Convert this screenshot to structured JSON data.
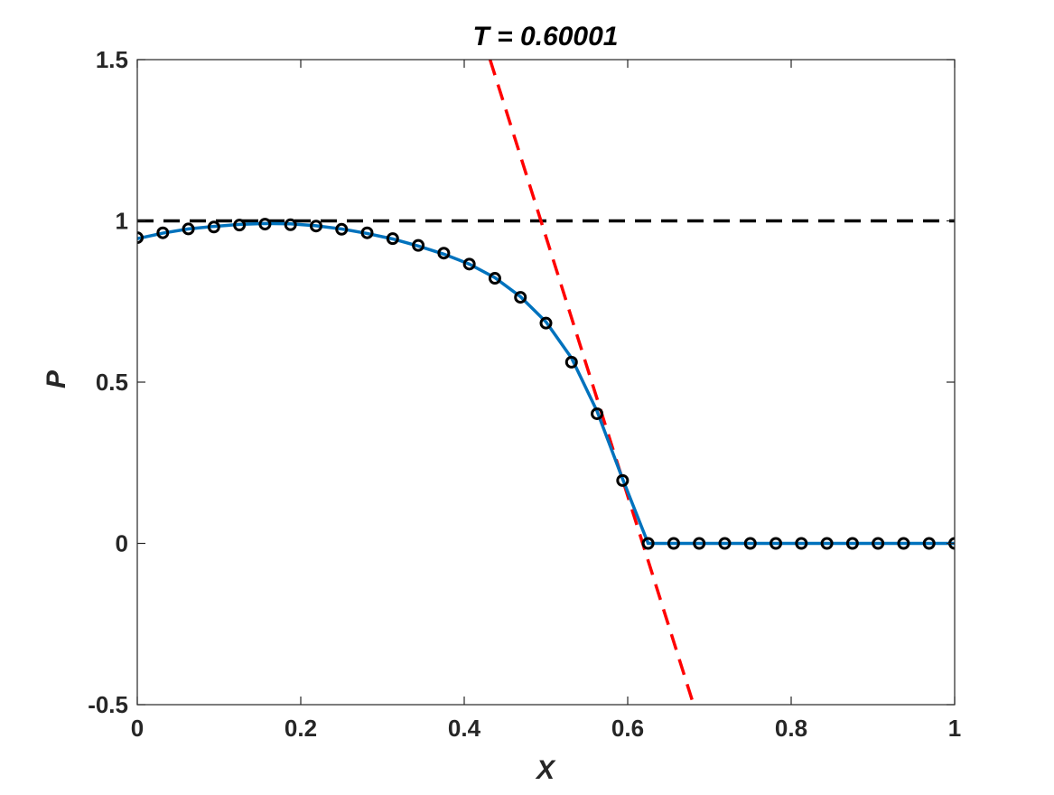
{
  "chart_data": {
    "type": "line",
    "title": "T = 0.60001",
    "xlabel": "X",
    "ylabel": "P",
    "xlim": [
      0,
      1
    ],
    "ylim": [
      -0.5,
      1.5
    ],
    "x_ticks": [
      0,
      0.2,
      0.4,
      0.6,
      0.8,
      1
    ],
    "y_ticks": [
      -0.5,
      0,
      0.5,
      1,
      1.5
    ],
    "x_tick_labels": [
      "0",
      "0.2",
      "0.4",
      "0.6",
      "0.8",
      "1"
    ],
    "y_tick_labels": [
      "-0.5",
      "0",
      "0.5",
      "1",
      "1.5"
    ],
    "grid": false,
    "box": true,
    "series": [
      {
        "style": "solid-line",
        "color": "#0072BD",
        "x": [
          0,
          0.03125,
          0.0625,
          0.09375,
          0.125,
          0.15625,
          0.1875,
          0.21875,
          0.25,
          0.28125,
          0.3125,
          0.34375,
          0.375,
          0.40625,
          0.4375,
          0.46875,
          0.5,
          0.53125,
          0.5625,
          0.59375,
          0.625,
          0.65625,
          0.6875,
          0.71875,
          0.75,
          0.78125,
          0.8125,
          0.84375,
          0.875,
          0.90625,
          0.9375,
          0.96875,
          1
        ],
        "y": [
          0.945,
          0.962,
          0.975,
          0.983,
          0.989,
          0.992,
          0.991,
          0.985,
          0.975,
          0.961,
          0.944,
          0.922,
          0.897,
          0.866,
          0.824,
          0.765,
          0.687,
          0.575,
          0.41,
          0.2,
          0,
          0,
          0,
          0,
          0,
          0,
          0,
          0,
          0,
          0,
          0,
          0,
          0
        ]
      },
      {
        "style": "markers",
        "marker": "circle",
        "color": "#000000",
        "x": [
          0,
          0.03125,
          0.0625,
          0.09375,
          0.125,
          0.15625,
          0.1875,
          0.21875,
          0.25,
          0.28125,
          0.3125,
          0.34375,
          0.375,
          0.40625,
          0.4375,
          0.46875,
          0.5,
          0.53125,
          0.5625,
          0.59375,
          0.625,
          0.65625,
          0.6875,
          0.71875,
          0.75,
          0.78125,
          0.8125,
          0.84375,
          0.875,
          0.90625,
          0.9375,
          0.96875,
          1
        ],
        "y": [
          0.948,
          0.963,
          0.975,
          0.981,
          0.987,
          0.99,
          0.988,
          0.984,
          0.974,
          0.963,
          0.945,
          0.924,
          0.9,
          0.866,
          0.822,
          0.763,
          0.683,
          0.562,
          0.402,
          0.195,
          0,
          0,
          0,
          0,
          0,
          0,
          0,
          0,
          0,
          0,
          0,
          0,
          0
        ]
      },
      {
        "style": "dashed-line",
        "color": "#000000",
        "x": [
          0,
          1
        ],
        "y": [
          1,
          1
        ]
      },
      {
        "style": "dashed-line",
        "color": "#FF0000",
        "x": [
          0.4316,
          0.6806
        ],
        "y": [
          1.5,
          -0.5
        ]
      }
    ]
  }
}
